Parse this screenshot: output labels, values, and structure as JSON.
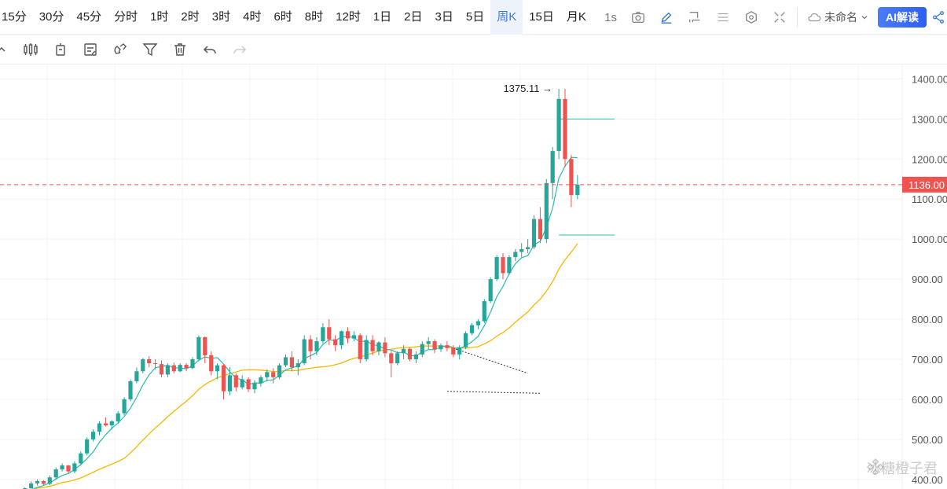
{
  "toolbar": {
    "intervals": [
      "15分",
      "30分",
      "45分",
      "分时",
      "1时",
      "2时",
      "3时",
      "4时",
      "6时",
      "8时",
      "12时",
      "1日",
      "2日",
      "3日",
      "5日",
      "周K",
      "15日",
      "月K"
    ],
    "active_interval": "周K",
    "replay_label": "1s",
    "layout_name": "未命名",
    "ai_label": "AI解读"
  },
  "icons": {
    "camera": "camera-icon",
    "pen": "pen-icon",
    "crop": "crop-icon",
    "indicators": "list-icon",
    "settings": "gear-icon",
    "fullscreen": "fullscreen-icon",
    "cloud": "cloud-icon",
    "share": "share-icon",
    "draw_tools": [
      "trend-line-icon",
      "candle-type-icon",
      "indicator-icon",
      "note-icon",
      "magnet-icon",
      "filter-icon",
      "trash-icon",
      "undo-icon",
      "redo-icon"
    ]
  },
  "colors": {
    "up": "#26a69a",
    "down": "#ef5350",
    "ma_fast": "#2bbbad",
    "ma_slow": "#f5b800",
    "price_line": "#ef5350",
    "active_text": "#3d7ad6",
    "grid": "#f1f3f6",
    "axis_text": "#555555"
  },
  "chart_data": {
    "type": "candlestick",
    "title": "",
    "ylim": [
      380,
      1440
    ],
    "y_ticks": [
      400,
      500,
      600,
      700,
      800,
      900,
      1000,
      1100,
      1200,
      1300,
      1400
    ],
    "y_tick_labels": [
      "400.00",
      "500.00",
      "600.00",
      "700.00",
      "800.00",
      "900.00",
      "1000.00",
      "1100.00",
      "1200.00",
      "1300.00",
      "1400.00"
    ],
    "current_price": 1136.0,
    "current_price_label": "1136.00",
    "high_label": "1375.11",
    "high_value": 1375.11,
    "grid": true,
    "series": [
      {
        "name": "",
        "kind": "ma_fast"
      },
      {
        "name": "",
        "kind": "ma_slow"
      }
    ],
    "candles_note": "weekly OHLC read from chart",
    "candles": [
      [
        365,
        370,
        360,
        368
      ],
      [
        368,
        372,
        362,
        366
      ],
      [
        366,
        375,
        364,
        371
      ],
      [
        371,
        380,
        368,
        378
      ],
      [
        378,
        395,
        372,
        390
      ],
      [
        390,
        400,
        385,
        396
      ],
      [
        396,
        398,
        386,
        389
      ],
      [
        389,
        410,
        385,
        405
      ],
      [
        405,
        430,
        400,
        425
      ],
      [
        425,
        440,
        420,
        435
      ],
      [
        435,
        436,
        415,
        420
      ],
      [
        420,
        445,
        415,
        440
      ],
      [
        440,
        470,
        435,
        465
      ],
      [
        465,
        505,
        460,
        500
      ],
      [
        500,
        525,
        495,
        519
      ],
      [
        519,
        545,
        510,
        540
      ],
      [
        540,
        555,
        532,
        535
      ],
      [
        535,
        548,
        525,
        545
      ],
      [
        545,
        570,
        540,
        565
      ],
      [
        565,
        605,
        560,
        600
      ],
      [
        600,
        650,
        595,
        645
      ],
      [
        645,
        680,
        640,
        670
      ],
      [
        670,
        703,
        665,
        700
      ],
      [
        700,
        708,
        680,
        690
      ],
      [
        690,
        700,
        675,
        688
      ],
      [
        688,
        697,
        655,
        662
      ],
      [
        662,
        690,
        655,
        685
      ],
      [
        685,
        692,
        665,
        670
      ],
      [
        670,
        690,
        668,
        686
      ],
      [
        686,
        690,
        670,
        678
      ],
      [
        678,
        705,
        675,
        700
      ],
      [
        700,
        760,
        695,
        755
      ],
      [
        755,
        757,
        690,
        710
      ],
      [
        710,
        720,
        660,
        670
      ],
      [
        670,
        690,
        650,
        685
      ],
      [
        685,
        688,
        600,
        620
      ],
      [
        620,
        680,
        610,
        660
      ],
      [
        660,
        665,
        620,
        630
      ],
      [
        630,
        660,
        625,
        650
      ],
      [
        650,
        655,
        618,
        625
      ],
      [
        625,
        648,
        615,
        640
      ],
      [
        640,
        660,
        632,
        655
      ],
      [
        655,
        675,
        645,
        668
      ],
      [
        668,
        678,
        640,
        655
      ],
      [
        655,
        690,
        650,
        685
      ],
      [
        685,
        712,
        680,
        705
      ],
      [
        705,
        720,
        670,
        680
      ],
      [
        680,
        700,
        660,
        690
      ],
      [
        690,
        760,
        685,
        750
      ],
      [
        750,
        760,
        700,
        720
      ],
      [
        720,
        755,
        710,
        745
      ],
      [
        745,
        790,
        740,
        780
      ],
      [
        780,
        800,
        735,
        750
      ],
      [
        750,
        760,
        720,
        735
      ],
      [
        735,
        772,
        725,
        770
      ],
      [
        770,
        780,
        740,
        752
      ],
      [
        752,
        770,
        745,
        760
      ],
      [
        760,
        765,
        690,
        700
      ],
      [
        700,
        760,
        695,
        748
      ],
      [
        748,
        760,
        710,
        720
      ],
      [
        720,
        745,
        710,
        742
      ],
      [
        742,
        755,
        705,
        715
      ],
      [
        715,
        720,
        655,
        690
      ],
      [
        690,
        720,
        685,
        715
      ],
      [
        715,
        735,
        700,
        726
      ],
      [
        726,
        730,
        695,
        700
      ],
      [
        700,
        720,
        690,
        712
      ],
      [
        712,
        745,
        705,
        738
      ],
      [
        738,
        755,
        725,
        745
      ],
      [
        745,
        750,
        715,
        725
      ],
      [
        725,
        740,
        718,
        735
      ],
      [
        735,
        745,
        720,
        728
      ],
      [
        728,
        735,
        705,
        712
      ],
      [
        712,
        735,
        700,
        730
      ],
      [
        730,
        770,
        725,
        765
      ],
      [
        765,
        790,
        760,
        785
      ],
      [
        785,
        800,
        775,
        795
      ],
      [
        795,
        850,
        790,
        845
      ],
      [
        845,
        905,
        840,
        900
      ],
      [
        900,
        960,
        895,
        955
      ],
      [
        955,
        965,
        900,
        915
      ],
      [
        915,
        960,
        910,
        955
      ],
      [
        955,
        975,
        945,
        968
      ],
      [
        968,
        990,
        955,
        975
      ],
      [
        975,
        1000,
        965,
        980
      ],
      [
        980,
        1060,
        975,
        1050
      ],
      [
        1050,
        1080,
        990,
        1000
      ],
      [
        1000,
        1150,
        990,
        1140
      ],
      [
        1140,
        1230,
        1100,
        1220
      ],
      [
        1220,
        1375,
        1200,
        1350
      ],
      [
        1350,
        1375,
        1180,
        1200
      ],
      [
        1200,
        1210,
        1080,
        1110
      ],
      [
        1110,
        1160,
        1100,
        1136
      ]
    ]
  },
  "watermark": "冰糖橙子君"
}
